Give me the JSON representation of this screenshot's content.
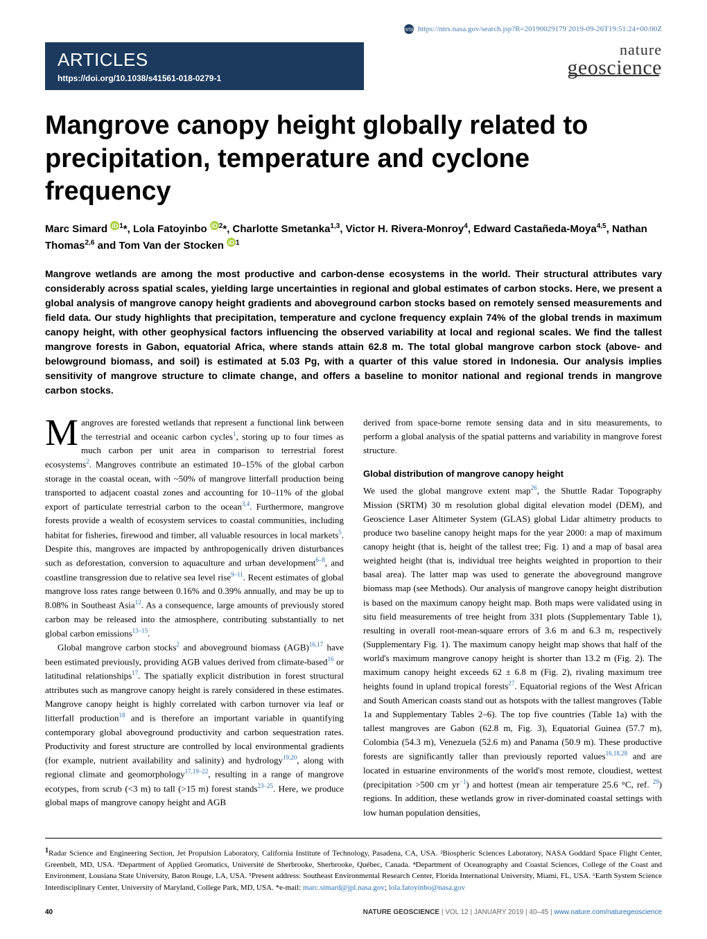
{
  "header": {
    "brand_glyph": "nrts",
    "ntrs_url": "https://ntrs.nasa.gov/search.jsp?R=20190029179 2019-09-26T19:51:24+00:00Z",
    "section_label": "ARTICLES",
    "doi": "https://doi.org/10.1038/s41561-018-0279-1",
    "journal_line1": "nature",
    "journal_line2": "geoscience"
  },
  "article": {
    "title": "Mangrove canopy height globally related to precipitation, temperature and cyclone frequency",
    "authors_html": "Marc Simard <span class='orcid-icon' data-name='orcid-icon' data-interactable='false'>iD</span><span class='sup'>1</span>*, Lola Fatoyinbo <span class='orcid-icon' data-name='orcid-icon' data-interactable='false'>iD</span><span class='sup'>2</span>*, Charlotte Smetanka<span class='sup'>1,3</span>, Victor H. Rivera-Monroy<span class='sup'>4</span>, Edward Castañeda-Moya<span class='sup'>4,5</span>, Nathan Thomas<span class='sup'>2,6</span> and Tom Van der Stocken <span class='orcid-icon' data-name='orcid-icon' data-interactable='false'>iD</span><span class='sup'>1</span>",
    "abstract": "Mangrove wetlands are among the most productive and carbon-dense ecosystems in the world. Their structural attributes vary considerably across spatial scales, yielding large uncertainties in regional and global estimates of carbon stocks. Here, we present a global analysis of mangrove canopy height gradients and aboveground carbon stocks based on remotely sensed measurements and field data. Our study highlights that precipitation, temperature and cyclone frequency explain 74% of the global trends in maximum canopy height, with other geophysical factors influencing the observed variability at local and regional scales. We find the tallest mangrove forests in Gabon, equatorial Africa, where stands attain 62.8 m. The total global mangrove carbon stock (above- and belowground biomass, and soil) is estimated at 5.03 Pg, with a quarter of this value stored in Indonesia. Our analysis implies sensitivity of mangrove structure to climate change, and offers a baseline to monitor national and regional trends in mangrove carbon stocks."
  },
  "body": {
    "p1": "Mangroves are forested wetlands that represent a functional link between the terrestrial and oceanic carbon cycles",
    "p1b": ", storing up to four times as much carbon per unit area in comparison to terrestrial forest ecosystems",
    "p1c": ". Mangroves contribute an estimated 10–15% of the global carbon storage in the coastal ocean, with ~50% of mangrove litterfall production being transported to adjacent coastal zones and accounting for 10–11% of the global export of particulate terrestrial carbon to the ocean",
    "p1d": ". Furthermore, mangrove forests provide a wealth of ecosystem services to coastal communities, including habitat for fisheries, firewood and timber, all valuable resources in local markets",
    "p1e": ". Despite this, mangroves are impacted by anthropogenically driven disturbances such as deforestation, conversion to aquaculture and urban development",
    "p1f": ", and coastline transgression due to relative sea level rise",
    "p1g": ". Recent estimates of global mangrove loss rates range between 0.16% and 0.39% annually, and may be up to 8.08% in Southeast Asia",
    "p1h": ". As a consequence, large amounts of previously stored carbon may be released into the atmosphere, contributing substantially to net global carbon emissions",
    "p1i": ".",
    "p2a": "Global mangrove carbon stocks",
    "p2b": " and aboveground biomass (AGB)",
    "p2c": " have been estimated previously, providing AGB values derived from climate-based",
    "p2d": " or latitudinal relationships",
    "p2e": ". The spatially explicit distribution in forest structural attributes such as mangrove canopy height is rarely considered in these estimates. Mangrove canopy height is highly correlated with carbon turnover via leaf or litterfall production",
    "p2f": " and is therefore an important variable in quantifying contemporary global aboveground productivity and carbon sequestration rates. Productivity and forest structure are controlled by local environmental gradients (for example, nutrient availability and salinity) and hydrology",
    "p2g": ", along with regional climate and geomorphology",
    "p2h": ", resulting in a range of mangrove ecotypes, from scrub (<3 m) to tall (>15 m) forest stands",
    "p2i": ". Here, we produce global maps of mangrove canopy height and AGB",
    "p3a": "derived from space-borne remote sensing data and in situ measurements, to perform a global analysis of the spatial patterns and variability in mangrove forest structure.",
    "section1_heading": "Global distribution of mangrove canopy height",
    "p4a": "We used the global mangrove extent map",
    "p4b": ", the Shuttle Radar Topography Mission (SRTM) 30 m resolution global digital elevation model (DEM), and Geoscience Laser Altimeter System (GLAS) global Lidar altimetry products to produce two baseline canopy height maps for the year 2000: a map of maximum canopy height (that is, height of the tallest tree; Fig. 1) and a map of basal area weighted height (that is, individual tree heights weighted in proportion to their basal area). The latter map was used to generate the aboveground mangrove biomass map (see Methods). Our analysis of mangrove canopy height distribution is based on the maximum canopy height map. Both maps were validated using in situ field measurements of tree height from 331 plots (Supplementary Table 1), resulting in overall root-mean-square errors of 3.6 m and 6.3 m, respectively (Supplementary Fig. 1). The maximum canopy height map shows that half of the world's maximum mangrove canopy height is shorter than 13.2 m (Fig. 2). The maximum canopy height exceeds 62 ± 6.8 m (Fig. 2), rivaling maximum tree heights found in upland tropical forests",
    "p4c": ". Equatorial regions of the West African and South American coasts stand out as hotspots with the tallest mangroves (Table 1a and Supplementary Tables 2–6). The top five countries (Table 1a) with the tallest mangroves are Gabon (62.8 m, Fig. 3), Equatorial Guinea (57.7 m), Colombia (54.3 m), Venezuela (52.6 m) and Panama (50.9 m). These productive forests are significantly taller than previously reported values",
    "p4d": " and are located in estuarine environments of the world's most remote, cloudiest, wettest (precipitation >500 cm yr",
    "p4e": ") and hottest (mean air temperature 25.6 °C, ref. ",
    "p4f": ") regions. In addition, these wetlands grow in river-dominated coastal settings with low human population densities,"
  },
  "affiliations": {
    "text": "Radar Science and Engineering Section, Jet Propulsion Laboratory, California Institute of Technology, Pasadena, CA, USA. ²Biospheric Sciences Laboratory, NASA Goddard Space Flight Center, Greenbelt, MD, USA. ³Department of Applied Geomatics, Université de Sherbrooke, Sherbrooke, Québec, Canada. ⁴Department of Oceanography and Coastal Sciences, College of the Coast and Environment, Lousiana State University, Baton Rouge, LA, USA. ⁵Present address: Southeast Environmental Research Center, Florida International University, Miami, FL, USA. ⁶Earth System Science Interdisciplinary Center, University of Maryland, College Park, MD, USA. *e-mail: ",
    "email1": "marc.simard@jpl.nasa.gov",
    "email2": "lola.fatoyinbo@nasa.gov"
  },
  "footer": {
    "page_number": "40",
    "citation_strong": "NATURE GEOSCIENCE",
    "citation_rest": " | VOL 12 | JANUARY 2019 | 40–45 | ",
    "citation_url": "www.nature.com/naturegeoscience"
  },
  "colors": {
    "header_bg": "#1c3a5e",
    "link": "#2a6db0",
    "orcid": "#a6ce39",
    "text": "#000000",
    "bg": "#ffffff"
  },
  "fonts": {
    "body": "Georgia",
    "headings": "Arial"
  }
}
